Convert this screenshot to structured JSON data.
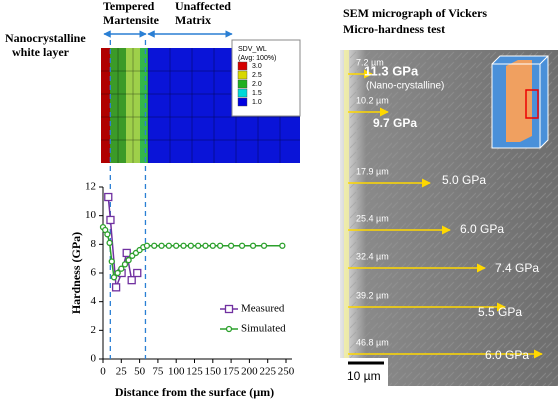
{
  "zones": {
    "white_layer": [
      "Nanocrystalline",
      "white layer"
    ],
    "tempered": [
      "Tempered",
      "Martensite"
    ],
    "matrix": [
      "Unaffected",
      "Matrix"
    ]
  },
  "contour_legend": {
    "title": [
      "SDV_WL",
      "(Avg: 100%)"
    ],
    "levels": [
      {
        "label": "3.0",
        "color": "#d40000"
      },
      {
        "label": "2.5",
        "color": "#d8d800"
      },
      {
        "label": "2.0",
        "color": "#20b020"
      },
      {
        "label": "1.5",
        "color": "#00d8d8"
      },
      {
        "label": "1.0",
        "color": "#0000e0"
      }
    ]
  },
  "sem": {
    "title": [
      "SEM micrograph of Vickers",
      "Micro-hardness test"
    ],
    "note": "(Nano-crystalline)",
    "scale_bar": "10 µm",
    "measurements": [
      {
        "depth": "7.2 µm",
        "hardness": "11.3 GPa"
      },
      {
        "depth": "10.2 µm",
        "hardness": "9.7 GPa"
      },
      {
        "depth": "17.9 µm",
        "hardness": "5.0 GPa"
      },
      {
        "depth": "25.4 µm",
        "hardness": "6.0 GPa"
      },
      {
        "depth": "32.4 µm",
        "hardness": "7.4 GPa"
      },
      {
        "depth": "39.2 µm",
        "hardness": "5.5 GPa"
      },
      {
        "depth": "46.8 µm",
        "hardness": "6.0 GPa"
      }
    ]
  },
  "chart_data": {
    "type": "line",
    "xlabel": "Distance from the surface (µm)",
    "ylabel": "Hardness (GPa)",
    "xlim": [
      0,
      250
    ],
    "xticks": [
      0,
      25,
      50,
      75,
      100,
      125,
      150,
      175,
      200,
      225,
      250
    ],
    "ylim": [
      0,
      12
    ],
    "yticks": [
      0,
      2,
      4,
      6,
      8,
      10,
      12
    ],
    "vlines": [
      10,
      58
    ],
    "series": [
      {
        "name": "Measured",
        "color": "#7030a0",
        "marker": "square",
        "x": [
          7.2,
          10.2,
          17.9,
          25.4,
          32.4,
          39.2,
          46.8
        ],
        "values": [
          11.3,
          9.7,
          5.0,
          6.0,
          7.4,
          5.5,
          6.0
        ]
      },
      {
        "name": "Simulated",
        "color": "#2ca02c",
        "marker": "circle",
        "x": [
          0,
          3,
          6,
          9,
          12,
          15,
          20,
          25,
          30,
          35,
          40,
          45,
          50,
          55,
          60,
          70,
          80,
          90,
          100,
          110,
          120,
          130,
          140,
          150,
          160,
          175,
          190,
          205,
          220,
          245
        ],
        "values": [
          9.2,
          9.0,
          8.7,
          8.1,
          6.8,
          5.7,
          6.0,
          6.3,
          6.6,
          6.9,
          7.2,
          7.4,
          7.6,
          7.8,
          7.9,
          7.9,
          7.9,
          7.9,
          7.9,
          7.9,
          7.9,
          7.9,
          7.9,
          7.9,
          7.9,
          7.9,
          7.9,
          7.9,
          7.9,
          7.9
        ]
      }
    ]
  }
}
